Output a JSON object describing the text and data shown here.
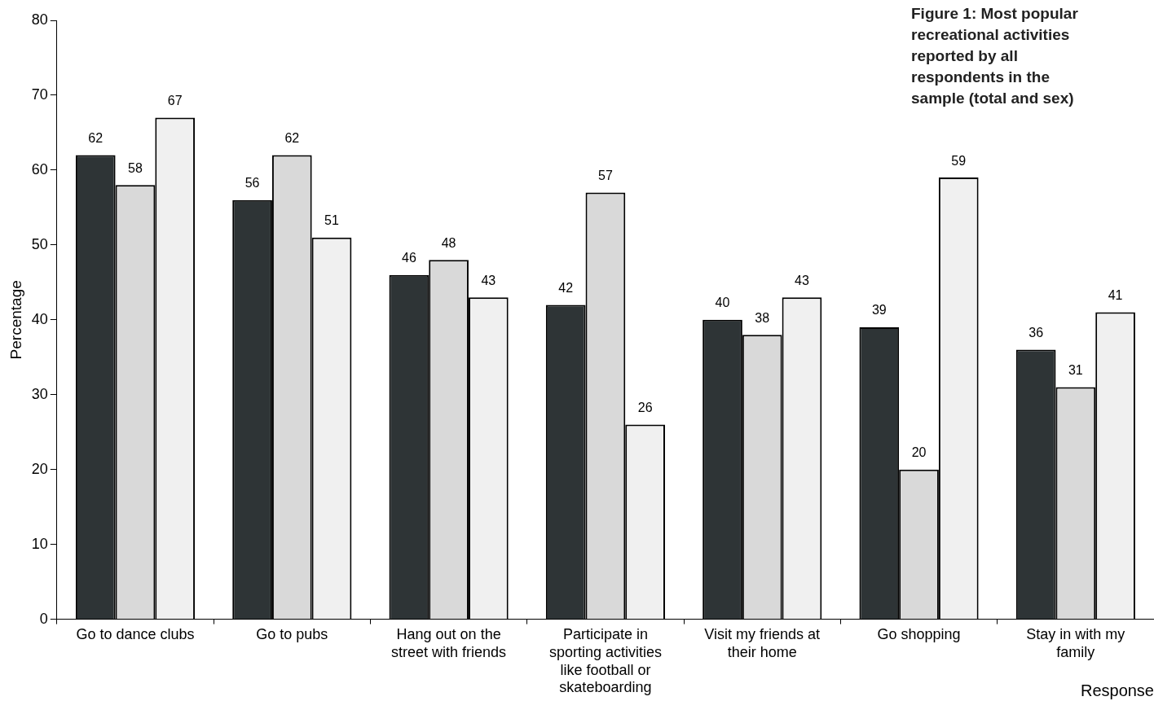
{
  "chart_data": {
    "type": "bar",
    "title": "Figure 1: Most popular recreational activities reported by all respondents in the sample (total and sex)",
    "xlabel": "Response",
    "ylabel": "Percentage",
    "categories": [
      "Go to dance clubs",
      "Go to pubs",
      "Hang out on the street with friends",
      "Participate in sporting activities like football or skateboarding",
      "Visit my friends at their home",
      "Go shopping",
      "Stay in with my family"
    ],
    "series": [
      {
        "color": "#2e3436",
        "values": [
          62,
          56,
          46,
          42,
          40,
          39,
          36
        ]
      },
      {
        "color": "#d9d9d9",
        "values": [
          58,
          62,
          48,
          57,
          38,
          20,
          31
        ]
      },
      {
        "color": "#f0f0f0",
        "values": [
          67,
          51,
          43,
          26,
          43,
          59,
          41
        ]
      }
    ],
    "ylim": [
      0,
      80
    ],
    "yticks": [
      0,
      10,
      20,
      30,
      40,
      50,
      60,
      70,
      80
    ],
    "grid": false,
    "legend": false,
    "data_labels": true
  }
}
